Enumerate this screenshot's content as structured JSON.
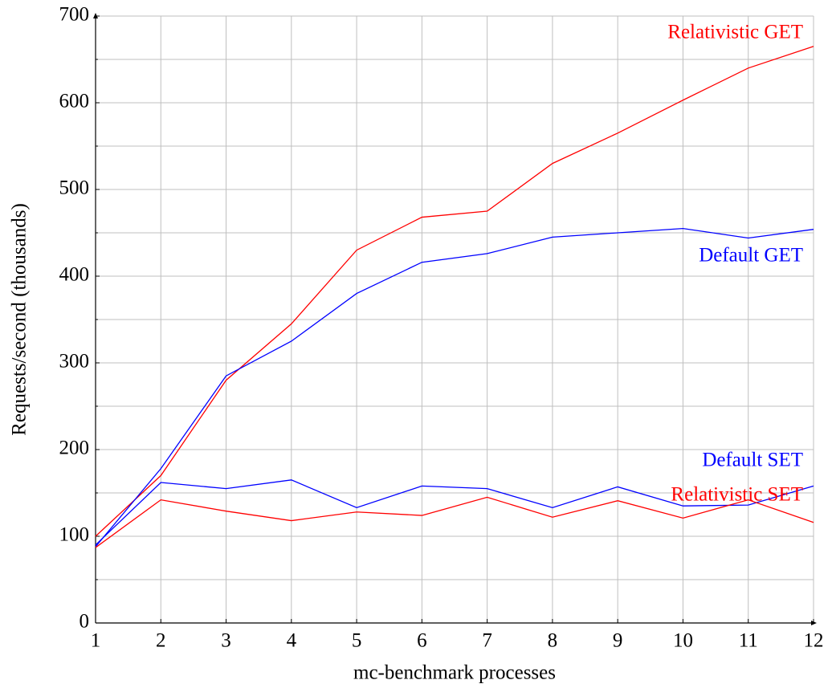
{
  "chart_data": {
    "type": "line",
    "x_label": "mc-benchmark processes",
    "y_label": "Requests/second (thousands)",
    "x": [
      1,
      2,
      3,
      4,
      5,
      6,
      7,
      8,
      9,
      10,
      11,
      12
    ],
    "series": [
      {
        "name": "Relativistic GET",
        "color": "#ff0000",
        "values": [
          100,
          170,
          280,
          345,
          430,
          468,
          475,
          530,
          565,
          603,
          640,
          665
        ]
      },
      {
        "name": "Default GET",
        "color": "#0000ff",
        "values": [
          88,
          178,
          285,
          325,
          380,
          416,
          426,
          445,
          450,
          455,
          444,
          454
        ]
      },
      {
        "name": "Default SET",
        "color": "#0000ff",
        "values": [
          90,
          162,
          155,
          165,
          133,
          158,
          155,
          133,
          157,
          135,
          136,
          158
        ]
      },
      {
        "name": "Relativistic SET",
        "color": "#ff0000",
        "values": [
          87,
          142,
          129,
          118,
          128,
          124,
          145,
          122,
          141,
          121,
          142,
          116
        ]
      }
    ],
    "xlim": [
      1,
      12
    ],
    "xticks": [
      1,
      2,
      3,
      4,
      5,
      6,
      7,
      8,
      9,
      10,
      11,
      12
    ],
    "ylim": [
      0,
      700
    ],
    "yticks": [
      0,
      100,
      200,
      300,
      400,
      500,
      600,
      700
    ],
    "y_minor_ticks": [
      50,
      150,
      250,
      350,
      450,
      550,
      650
    ],
    "grid": true
  }
}
